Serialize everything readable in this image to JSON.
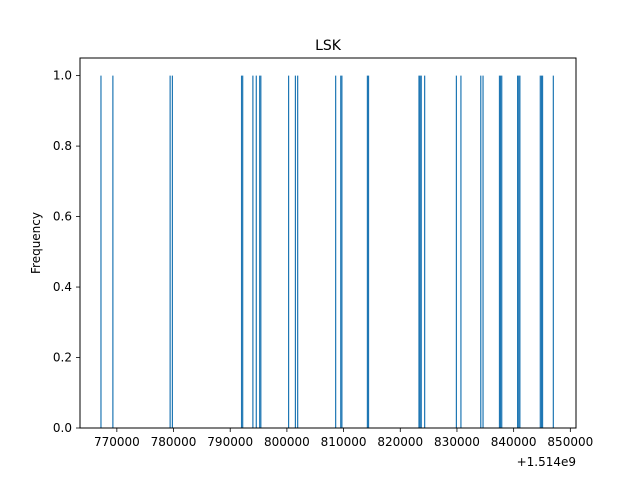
{
  "chart_data": {
    "type": "bar",
    "title": "LSK",
    "xlabel": "",
    "ylabel": "Frequency",
    "x_offset_label": "+1.514e9",
    "x_offset": 1514000000,
    "xlim": [
      763500,
      851000
    ],
    "ylim": [
      0,
      1.05
    ],
    "x_ticks": [
      770000,
      780000,
      790000,
      800000,
      810000,
      820000,
      830000,
      840000,
      850000
    ],
    "x_tick_labels": [
      "770000",
      "780000",
      "790000",
      "800000",
      "810000",
      "820000",
      "830000",
      "840000",
      "850000"
    ],
    "y_ticks": [
      0.0,
      0.2,
      0.4,
      0.6,
      0.8,
      1.0
    ],
    "y_tick_labels": [
      "0.0",
      "0.2",
      "0.4",
      "0.6",
      "0.8",
      "1.0"
    ],
    "grid": false,
    "bar_color": "#1f77b4",
    "x": [
      767200,
      769300,
      779400,
      779800,
      792000,
      792200,
      794000,
      794600,
      795200,
      795400,
      800300,
      801500,
      801900,
      808600,
      809500,
      809700,
      814200,
      814400,
      823300,
      823500,
      823700,
      824300,
      829900,
      830700,
      834200,
      834600,
      837500,
      837700,
      837900,
      840700,
      840900,
      841100,
      844700,
      844900,
      845100,
      847000
    ],
    "values": [
      1,
      1,
      1,
      1,
      1,
      1,
      1,
      1,
      1,
      1,
      1,
      1,
      1,
      1,
      1,
      1,
      1,
      1,
      1,
      1,
      1,
      1,
      1,
      1,
      1,
      1,
      1,
      1,
      1,
      1,
      1,
      1,
      1,
      1,
      1,
      1
    ]
  }
}
